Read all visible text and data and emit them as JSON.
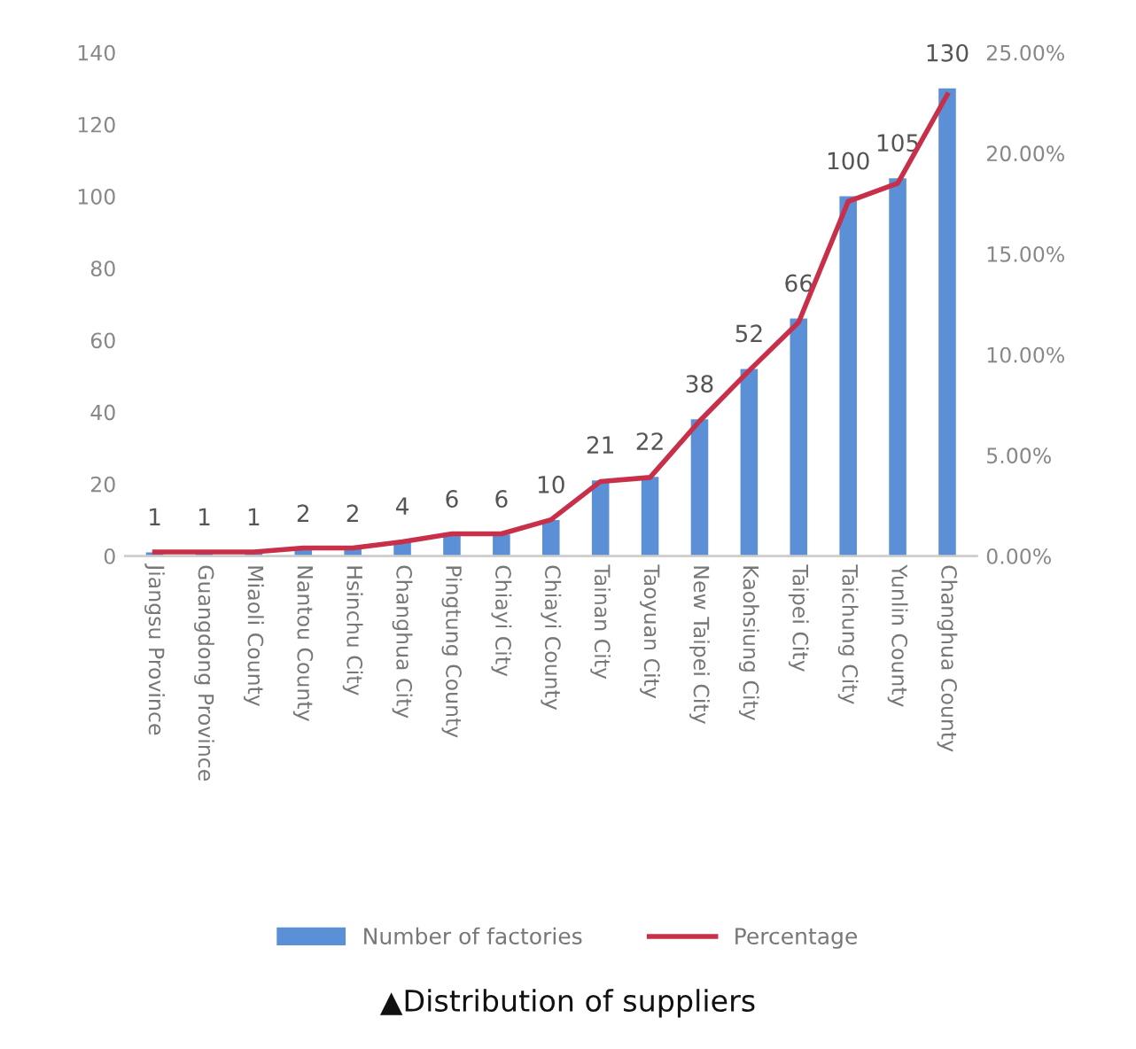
{
  "chart_data": {
    "type": "bar",
    "categories": [
      "Jiangsu Province",
      "Guangdong Province",
      "Miaoli County",
      "Nantou County",
      "Hsinchu City",
      "Changhua City",
      "Pingtung County",
      "Chiayi City",
      "Chiayi County",
      "Tainan City",
      "Taoyuan City",
      "New Taipei City",
      "Kaohsiung City",
      "Taipei City",
      "Taichung City",
      "Yunlin County",
      "Changhua County"
    ],
    "series": [
      {
        "name": "Number of factories",
        "color": "#5b8fd6",
        "values": [
          1,
          1,
          1,
          2,
          2,
          4,
          6,
          6,
          10,
          21,
          22,
          38,
          52,
          66,
          100,
          105,
          130
        ],
        "value_labels": [
          "1",
          "1",
          "1",
          "2",
          "2",
          "4",
          "6",
          "6",
          "10",
          "21",
          "22",
          "38",
          "52",
          "66",
          "100",
          "105",
          "130"
        ]
      },
      {
        "name": "Percentage",
        "type": "line",
        "axis": "y2",
        "color": "#c8304a",
        "values": [
          0.2,
          0.2,
          0.2,
          0.4,
          0.4,
          0.7,
          1.1,
          1.1,
          1.8,
          3.7,
          3.9,
          6.7,
          9.2,
          11.6,
          17.6,
          18.5,
          22.9
        ]
      }
    ],
    "ylim": [
      0,
      140
    ],
    "yticks": [
      0,
      20,
      40,
      60,
      80,
      100,
      120,
      140
    ],
    "y2lim": [
      0,
      25
    ],
    "y2ticks": [
      {
        "value": 0,
        "label": "0.00%"
      },
      {
        "value": 5,
        "label": "5.00%"
      },
      {
        "value": 10,
        "label": "10.00%"
      },
      {
        "value": 15,
        "label": "15.00%"
      },
      {
        "value": 20,
        "label": "20.00%"
      },
      {
        "value": 25,
        "label": "25.00%"
      }
    ],
    "grid": false,
    "legend": "bottom",
    "marker": "none",
    "annotations": [
      "▲Distribution of suppliers"
    ]
  }
}
